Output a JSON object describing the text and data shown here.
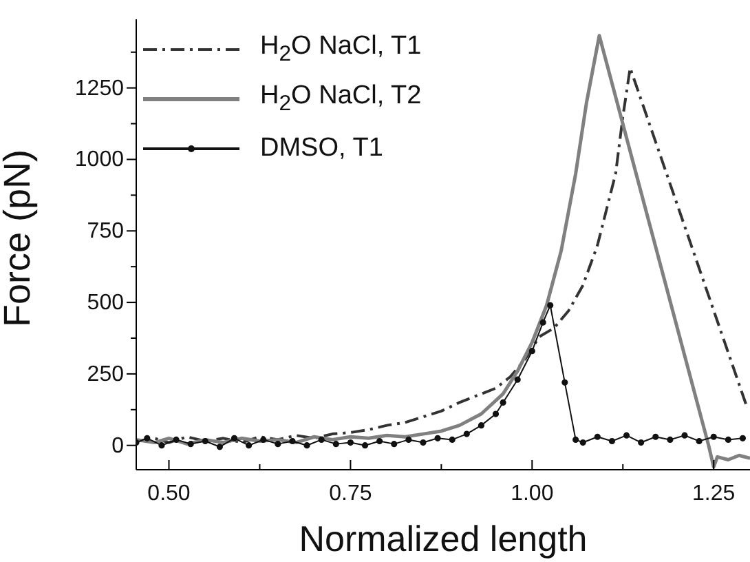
{
  "chart_data": {
    "type": "line",
    "xlabel": "Normalized length",
    "ylabel": "Force (pN)",
    "xlim": [
      0.455,
      1.3
    ],
    "ylim": [
      -85,
      1490
    ],
    "xticks": [
      {
        "value": 0.5,
        "label": "0.50"
      },
      {
        "value": 0.625,
        "label": null
      },
      {
        "value": 0.75,
        "label": "0.75"
      },
      {
        "value": 0.875,
        "label": null
      },
      {
        "value": 1.0,
        "label": "1.00"
      },
      {
        "value": 1.125,
        "label": null
      },
      {
        "value": 1.25,
        "label": "1.25"
      }
    ],
    "yticks": [
      0,
      {
        "value": 125,
        "label": null
      },
      250,
      {
        "value": 375,
        "label": null
      },
      500,
      {
        "value": 625,
        "label": null
      },
      750,
      {
        "value": 875,
        "label": null
      },
      1000,
      {
        "value": 1125,
        "label": null
      },
      1250,
      {
        "value": 1375,
        "label": null
      }
    ],
    "grid": false,
    "legend": "top left",
    "series": [
      {
        "name": "H$_{2}$O  NaCl,  T1",
        "color": "#333333",
        "line_style": "dashdot",
        "marker": "none",
        "x": [
          0.455,
          0.48,
          0.5,
          0.525,
          0.55,
          0.575,
          0.6,
          0.625,
          0.65,
          0.675,
          0.7,
          0.725,
          0.75,
          0.775,
          0.8,
          0.825,
          0.85,
          0.875,
          0.9,
          0.925,
          0.95,
          0.97,
          0.99,
          1.01,
          1.03,
          1.05,
          1.07,
          1.09,
          1.1,
          1.115,
          1.125,
          1.135,
          1.295
        ],
        "values": [
          15,
          25,
          10,
          30,
          15,
          25,
          10,
          30,
          20,
          35,
          25,
          40,
          45,
          55,
          70,
          80,
          100,
          120,
          150,
          175,
          200,
          240,
          300,
          380,
          410,
          470,
          560,
          700,
          800,
          950,
          1150,
          1320,
          140
        ]
      },
      {
        "name": "H$_{2}$O  NaCl,  T2",
        "color": "#808080",
        "line_style": "solid",
        "marker": "none",
        "x": [
          0.455,
          0.48,
          0.5,
          0.525,
          0.55,
          0.575,
          0.6,
          0.625,
          0.65,
          0.675,
          0.7,
          0.725,
          0.75,
          0.775,
          0.8,
          0.825,
          0.85,
          0.875,
          0.9,
          0.93,
          0.96,
          0.98,
          1.0,
          1.02,
          1.04,
          1.06,
          1.075,
          1.0925,
          1.243,
          1.25,
          1.255,
          1.27,
          1.285,
          1.3
        ],
        "values": [
          20,
          10,
          25,
          5,
          20,
          10,
          25,
          15,
          20,
          10,
          30,
          20,
          30,
          25,
          35,
          30,
          40,
          50,
          70,
          110,
          180,
          260,
          360,
          490,
          680,
          950,
          1200,
          1433,
          0,
          -75,
          -40,
          -50,
          -35,
          -45
        ]
      },
      {
        "name": "DMSO,  T1",
        "color": "#111111",
        "line_style": "solid",
        "marker": "circle",
        "x": [
          0.455,
          0.47,
          0.49,
          0.51,
          0.53,
          0.55,
          0.57,
          0.59,
          0.61,
          0.63,
          0.65,
          0.67,
          0.69,
          0.71,
          0.73,
          0.75,
          0.77,
          0.79,
          0.81,
          0.83,
          0.85,
          0.87,
          0.89,
          0.91,
          0.93,
          0.95,
          0.96,
          0.98,
          1.0,
          1.015,
          1.025,
          1.045,
          1.06,
          1.07,
          1.09,
          1.11,
          1.13,
          1.15,
          1.17,
          1.19,
          1.21,
          1.23,
          1.25,
          1.27,
          1.29
        ],
        "values": [
          10,
          25,
          0,
          20,
          5,
          15,
          -5,
          25,
          0,
          20,
          5,
          15,
          0,
          20,
          5,
          10,
          0,
          15,
          5,
          20,
          10,
          25,
          20,
          40,
          70,
          110,
          150,
          230,
          330,
          430,
          490,
          220,
          20,
          10,
          30,
          15,
          35,
          10,
          30,
          20,
          35,
          15,
          30,
          20,
          25
        ]
      }
    ]
  }
}
